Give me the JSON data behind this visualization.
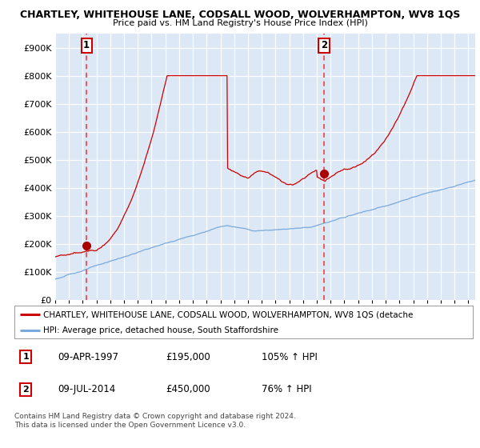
{
  "title": "CHARTLEY, WHITEHOUSE LANE, CODSALL WOOD, WOLVERHAMPTON, WV8 1QS",
  "subtitle": "Price paid vs. HM Land Registry's House Price Index (HPI)",
  "ylim": [
    0,
    950000
  ],
  "yticks": [
    0,
    100000,
    200000,
    300000,
    400000,
    500000,
    600000,
    700000,
    800000,
    900000
  ],
  "ytick_labels": [
    "£0",
    "£100K",
    "£200K",
    "£300K",
    "£400K",
    "£500K",
    "£600K",
    "£700K",
    "£800K",
    "£900K"
  ],
  "background_color": "#dce8f5",
  "grid_color": "#c8d8ea",
  "red_line_color": "#cc0000",
  "blue_line_color": "#7aaadd",
  "marker_color": "#aa0000",
  "dashed_line_color": "#ee3333",
  "sale1_year": 1997.28,
  "sale1_price": 195000,
  "sale2_year": 2014.52,
  "sale2_price": 450000,
  "legend_label_red": "CHARTLEY, WHITEHOUSE LANE, CODSALL WOOD, WOLVERHAMPTON, WV8 1QS (detache",
  "legend_label_blue": "HPI: Average price, detached house, South Staffordshire",
  "table_row1": [
    "1",
    "09-APR-1997",
    "£195,000",
    "105% ↑ HPI"
  ],
  "table_row2": [
    "2",
    "09-JUL-2014",
    "£450,000",
    "76% ↑ HPI"
  ],
  "footnote": "Contains HM Land Registry data © Crown copyright and database right 2024.\nThis data is licensed under the Open Government Licence v3.0.",
  "xstart": 1995.0,
  "xend": 2025.5
}
